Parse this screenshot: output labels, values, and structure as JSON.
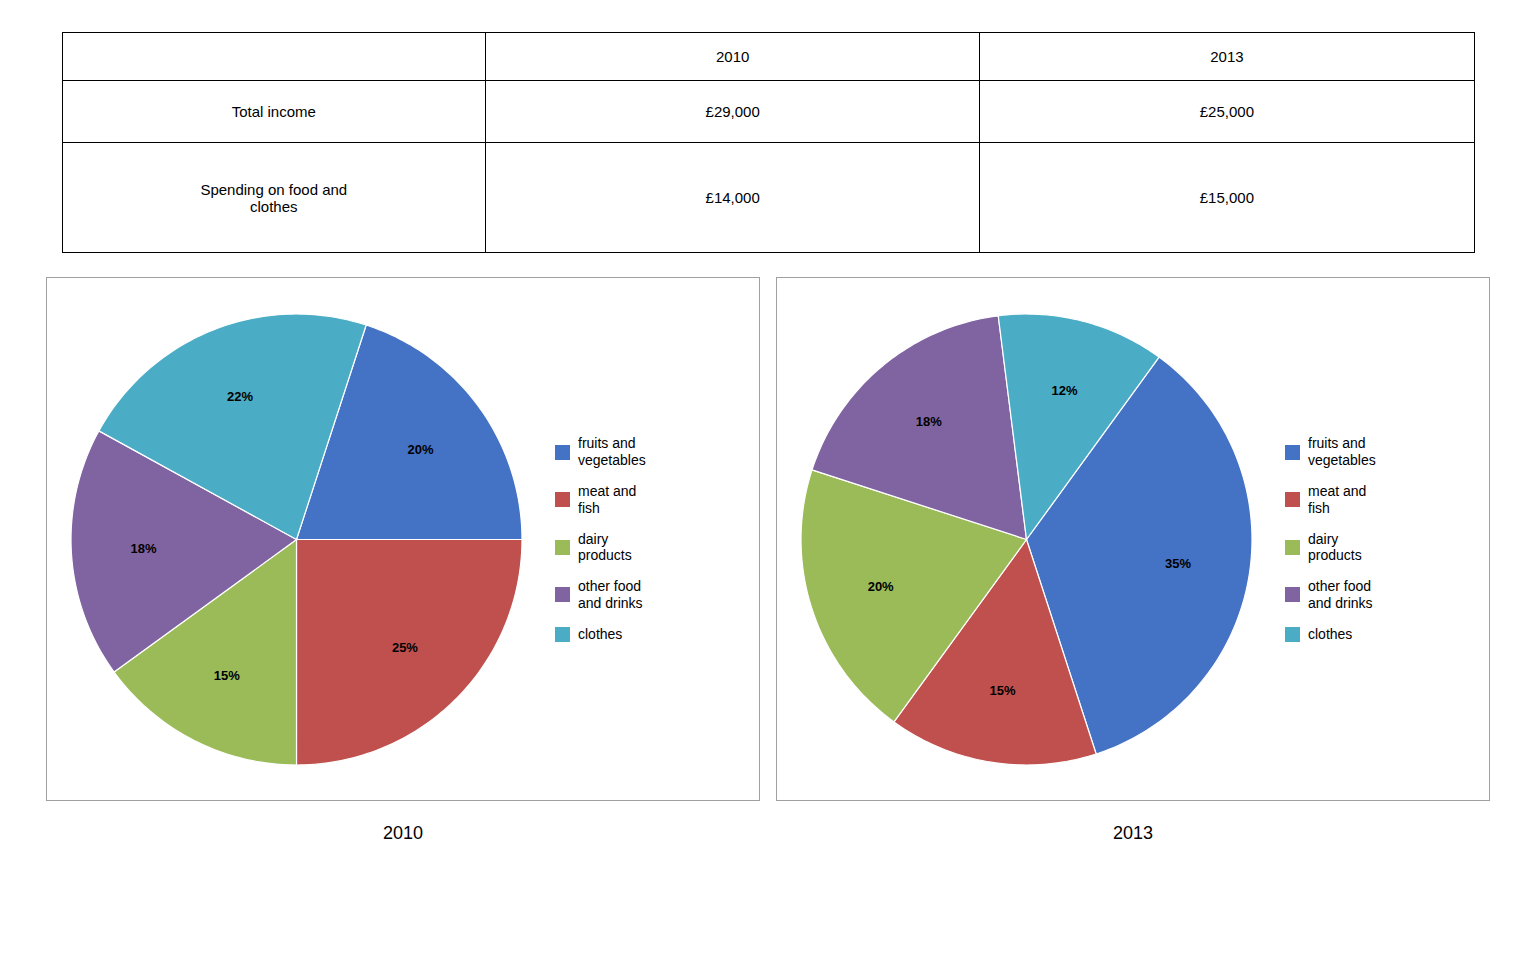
{
  "chart_data": [
    {
      "type": "table",
      "headers": [
        null,
        "2010",
        "2013"
      ],
      "rows": [
        [
          "Total income",
          "£29,000",
          "£25,000"
        ],
        [
          "Spending on food and\nclothes",
          "£14,000",
          "£15,000"
        ]
      ]
    },
    {
      "type": "pie",
      "title": "2010",
      "categories": [
        "fruits and\nvegetables",
        "meat and\nfish",
        "dairy\nproducts",
        "other food\nand drinks",
        "clothes"
      ],
      "values": [
        20,
        25,
        15,
        18,
        22
      ],
      "value_labels": [
        "20%",
        "25%",
        "15%",
        "18%",
        "22%"
      ],
      "colors": [
        "#4472C4",
        "#C0504D",
        "#9BBB59",
        "#8064A2",
        "#4BACC6"
      ],
      "data_labels": true,
      "legend": "right"
    },
    {
      "type": "pie",
      "title": "2013",
      "categories": [
        "fruits and\nvegetables",
        "meat and\nfish",
        "dairy\nproducts",
        "other food\nand drinks",
        "clothes"
      ],
      "values": [
        35,
        15,
        20,
        18,
        12
      ],
      "value_labels": [
        "35%",
        "15%",
        "20%",
        "18%",
        "12%"
      ],
      "colors": [
        "#4472C4",
        "#C0504D",
        "#9BBB59",
        "#8064A2",
        "#4BACC6"
      ],
      "data_labels": true,
      "legend": "right"
    }
  ]
}
